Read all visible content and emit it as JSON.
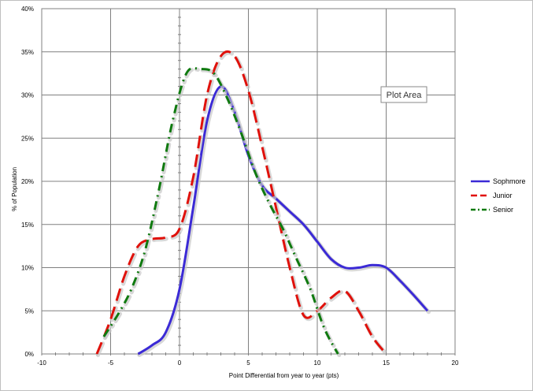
{
  "chart_data": {
    "type": "line",
    "title": "",
    "xlabel": "Point  Differential  from year to year (pts)",
    "ylabel": "% of Population",
    "xlim": [
      -10,
      20
    ],
    "ylim": [
      0,
      0.4
    ],
    "x_ticks": [
      -10,
      -5,
      0,
      5,
      10,
      15,
      20
    ],
    "x_tick_labels": [
      "-10",
      "-5",
      "0",
      "5",
      "10",
      "15",
      "20"
    ],
    "y_ticks": [
      0,
      0.05,
      0.1,
      0.15,
      0.2,
      0.25,
      0.3,
      0.35,
      0.4
    ],
    "y_tick_labels": [
      "0%",
      "5%",
      "10%",
      "15%",
      "20%",
      "25%",
      "30%",
      "35%",
      "40%"
    ],
    "grid": true,
    "legend_position": "right",
    "tooltip": "Plot Area",
    "series": [
      {
        "name": "Sophmore",
        "color": "#3b2ad6",
        "style": "solid",
        "x": [
          -3,
          -2,
          -1,
          0,
          1,
          2,
          3,
          4,
          5,
          6,
          7,
          8,
          9,
          10,
          11,
          12,
          13,
          14,
          15,
          16,
          17,
          18
        ],
        "y": [
          0.0,
          0.01,
          0.025,
          0.075,
          0.17,
          0.27,
          0.31,
          0.28,
          0.23,
          0.195,
          0.18,
          0.165,
          0.15,
          0.13,
          0.11,
          0.1,
          0.1,
          0.103,
          0.1,
          0.085,
          0.068,
          0.05
        ]
      },
      {
        "name": "Junior",
        "color": "#e0110b",
        "style": "dashed",
        "x": [
          -6,
          -5,
          -4,
          -3,
          -2,
          -1,
          0,
          1,
          2,
          3,
          4,
          5,
          6,
          7,
          8,
          9,
          10,
          11,
          12,
          13,
          14,
          15
        ],
        "y": [
          0.0,
          0.04,
          0.09,
          0.125,
          0.133,
          0.135,
          0.145,
          0.205,
          0.3,
          0.345,
          0.345,
          0.305,
          0.24,
          0.17,
          0.1,
          0.045,
          0.05,
          0.065,
          0.073,
          0.05,
          0.02,
          0.0
        ]
      },
      {
        "name": "Senior",
        "color": "#0f7a0f",
        "style": "dashdot",
        "x": [
          -5.5,
          -4.5,
          -3.5,
          -2.5,
          -1.5,
          -0.5,
          0.5,
          1.5,
          2.5,
          3.5,
          4.5,
          5.5,
          6.5,
          7.5,
          8.5,
          9.5,
          10.5,
          11.5
        ],
        "y": [
          0.02,
          0.045,
          0.075,
          0.12,
          0.19,
          0.27,
          0.325,
          0.33,
          0.325,
          0.295,
          0.255,
          0.21,
          0.175,
          0.145,
          0.11,
          0.075,
          0.03,
          0.0
        ]
      }
    ]
  }
}
